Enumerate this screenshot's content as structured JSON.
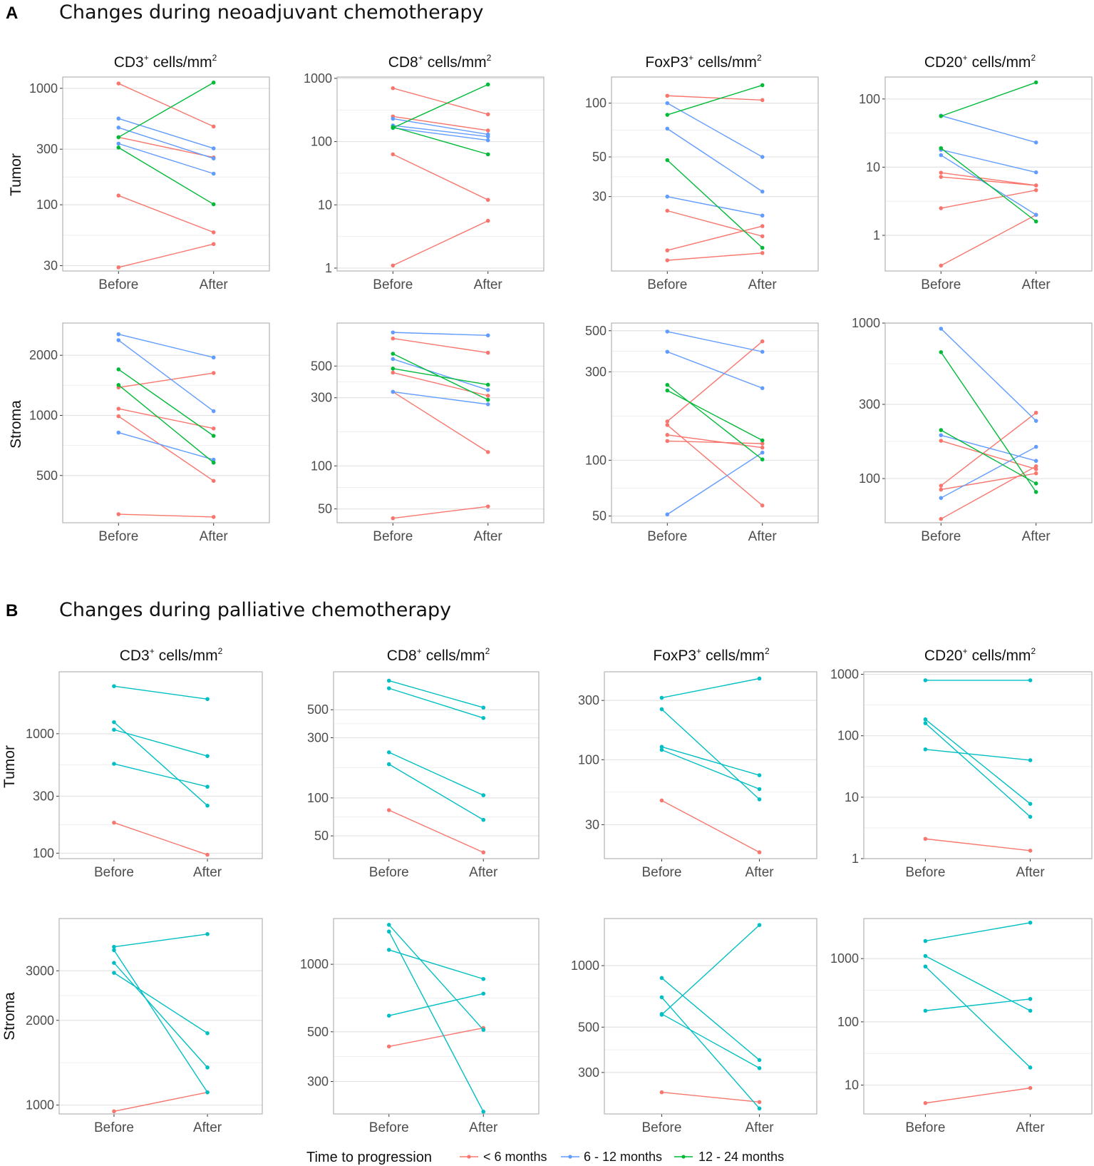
{
  "sections": [
    {
      "letter": "A",
      "title": "Changes during neoadjuvant chemotherapy"
    },
    {
      "letter": "B",
      "title": "Changes during palliative chemotherapy"
    }
  ],
  "columns": [
    {
      "marker": "CD3",
      "unit": "cells/mm",
      "sup": "+",
      "exp": "2"
    },
    {
      "marker": "CD8",
      "unit": "cells/mm",
      "sup": "+",
      "exp": "2"
    },
    {
      "marker": "FoxP3",
      "unit": "cells/mm",
      "sup": "+",
      "exp": "2"
    },
    {
      "marker": "CD20",
      "unit": "cells/mm",
      "sup": "+",
      "exp": "2"
    }
  ],
  "row_labels": [
    "Tumor",
    "Stroma"
  ],
  "x_categories": [
    "Before",
    "After"
  ],
  "legend": {
    "title": "Time to progression",
    "items": [
      {
        "label": "< 6 months",
        "color": "#F8766D"
      },
      {
        "label": "6 - 12 months",
        "color": "#619CFF"
      },
      {
        "label": "12 - 24 months",
        "color": "#00BA38"
      }
    ]
  },
  "colors": {
    "lt6": "#F8766D",
    "m6_12": "#619CFF",
    "m12_24": "#00BA38",
    "palliative": "#00BFC4",
    "grid": "#EBEBEB",
    "border": "#B3B3B3"
  },
  "chart_data": [
    {
      "section": "A",
      "row": "Tumor",
      "col": "CD3",
      "type": "line",
      "scale": "log",
      "ylim": [
        27,
        1250
      ],
      "yticks": [
        30,
        100,
        300,
        1000
      ],
      "series": [
        {
          "group": "lt6",
          "values": [
            1100,
            470
          ]
        },
        {
          "group": "lt6",
          "values": [
            380,
            255
          ]
        },
        {
          "group": "lt6",
          "values": [
            120,
            58
          ]
        },
        {
          "group": "lt6",
          "values": [
            29,
            46
          ]
        },
        {
          "group": "m6_12",
          "values": [
            550,
            305
          ]
        },
        {
          "group": "m6_12",
          "values": [
            460,
            250
          ]
        },
        {
          "group": "m6_12",
          "values": [
            335,
            185
          ]
        },
        {
          "group": "m12_24",
          "values": [
            380,
            1120
          ]
        },
        {
          "group": "m12_24",
          "values": [
            310,
            101
          ]
        }
      ]
    },
    {
      "section": "A",
      "row": "Tumor",
      "col": "CD8",
      "type": "line",
      "scale": "log",
      "ylim": [
        0.9,
        1050
      ],
      "yticks": [
        1,
        10,
        100,
        1000
      ],
      "series": [
        {
          "group": "lt6",
          "values": [
            700,
            270
          ]
        },
        {
          "group": "lt6",
          "values": [
            250,
            150
          ]
        },
        {
          "group": "lt6",
          "values": [
            63,
            12
          ]
        },
        {
          "group": "lt6",
          "values": [
            1.1,
            5.6
          ]
        },
        {
          "group": "m6_12",
          "values": [
            230,
            130
          ]
        },
        {
          "group": "m6_12",
          "values": [
            180,
            120
          ]
        },
        {
          "group": "m6_12",
          "values": [
            165,
            105
          ]
        },
        {
          "group": "m12_24",
          "values": [
            165,
            800
          ]
        },
        {
          "group": "m12_24",
          "values": [
            170,
            63
          ]
        }
      ]
    },
    {
      "section": "A",
      "row": "Tumor",
      "col": "FoxP3",
      "type": "line",
      "scale": "log",
      "ylim": [
        11.5,
        140
      ],
      "yticks": [
        30,
        50,
        100
      ],
      "series": [
        {
          "group": "lt6",
          "values": [
            110,
            104
          ]
        },
        {
          "group": "lt6",
          "values": [
            25,
            18
          ]
        },
        {
          "group": "lt6",
          "values": [
            15,
            20.5
          ]
        },
        {
          "group": "lt6",
          "values": [
            13.2,
            14.5
          ]
        },
        {
          "group": "m6_12",
          "values": [
            100,
            50
          ]
        },
        {
          "group": "m6_12",
          "values": [
            72,
            32
          ]
        },
        {
          "group": "m6_12",
          "values": [
            30,
            23.5
          ]
        },
        {
          "group": "m12_24",
          "values": [
            86,
            126
          ]
        },
        {
          "group": "m12_24",
          "values": [
            48,
            15.5
          ]
        }
      ]
    },
    {
      "section": "A",
      "row": "Tumor",
      "col": "CD20",
      "type": "line",
      "scale": "log",
      "ylim": [
        0.3,
        210
      ],
      "yticks": [
        1,
        10,
        100
      ],
      "series": [
        {
          "group": "lt6",
          "values": [
            8.3,
            5.4
          ]
        },
        {
          "group": "lt6",
          "values": [
            7.2,
            5.4
          ]
        },
        {
          "group": "lt6",
          "values": [
            2.5,
            4.6
          ]
        },
        {
          "group": "lt6",
          "values": [
            0.36,
            2.0
          ]
        },
        {
          "group": "m6_12",
          "values": [
            57,
            23
          ]
        },
        {
          "group": "m6_12",
          "values": [
            18,
            8.4
          ]
        },
        {
          "group": "m6_12",
          "values": [
            15,
            2.0
          ]
        },
        {
          "group": "m12_24",
          "values": [
            56,
            175
          ]
        },
        {
          "group": "m12_24",
          "values": [
            19,
            1.6
          ]
        }
      ]
    },
    {
      "section": "A",
      "row": "Stroma",
      "col": "CD3",
      "type": "line",
      "scale": "log",
      "ylim": [
        290,
        2900
      ],
      "yticks": [
        500,
        1000,
        2000
      ],
      "series": [
        {
          "group": "lt6",
          "values": [
            1380,
            1630
          ]
        },
        {
          "group": "lt6",
          "values": [
            1080,
            860
          ]
        },
        {
          "group": "lt6",
          "values": [
            990,
            470
          ]
        },
        {
          "group": "lt6",
          "values": [
            320,
            310
          ]
        },
        {
          "group": "m6_12",
          "values": [
            2550,
            1950
          ]
        },
        {
          "group": "m6_12",
          "values": [
            2380,
            1050
          ]
        },
        {
          "group": "m6_12",
          "values": [
            820,
            600
          ]
        },
        {
          "group": "m12_24",
          "values": [
            1700,
            790
          ]
        },
        {
          "group": "m12_24",
          "values": [
            1420,
            580
          ]
        }
      ]
    },
    {
      "section": "A",
      "row": "Stroma",
      "col": "CD8",
      "type": "line",
      "scale": "log",
      "ylim": [
        40,
        1000
      ],
      "yticks": [
        50,
        100,
        300,
        500
      ],
      "series": [
        {
          "group": "lt6",
          "values": [
            780,
            620
          ]
        },
        {
          "group": "lt6",
          "values": [
            450,
            310
          ]
        },
        {
          "group": "lt6",
          "values": [
            330,
            125
          ]
        },
        {
          "group": "lt6",
          "values": [
            43,
            52
          ]
        },
        {
          "group": "m6_12",
          "values": [
            860,
            820
          ]
        },
        {
          "group": "m6_12",
          "values": [
            560,
            340
          ]
        },
        {
          "group": "m6_12",
          "values": [
            330,
            270
          ]
        },
        {
          "group": "m12_24",
          "values": [
            610,
            290
          ]
        },
        {
          "group": "m12_24",
          "values": [
            480,
            370
          ]
        }
      ]
    },
    {
      "section": "A",
      "row": "Stroma",
      "col": "FoxP3",
      "type": "line",
      "scale": "log",
      "ylim": [
        46,
        550
      ],
      "yticks": [
        50,
        100,
        300,
        500
      ],
      "series": [
        {
          "group": "lt6",
          "values": [
            162,
            438
          ]
        },
        {
          "group": "lt6",
          "values": [
            155,
            57
          ]
        },
        {
          "group": "lt6",
          "values": [
            137,
            117
          ]
        },
        {
          "group": "lt6",
          "values": [
            127,
            123
          ]
        },
        {
          "group": "m6_12",
          "values": [
            495,
            385
          ]
        },
        {
          "group": "m6_12",
          "values": [
            385,
            245
          ]
        },
        {
          "group": "m6_12",
          "values": [
            51,
            110
          ]
        },
        {
          "group": "m12_24",
          "values": [
            255,
            101
          ]
        },
        {
          "group": "m12_24",
          "values": [
            238,
            128
          ]
        }
      ]
    },
    {
      "section": "A",
      "row": "Stroma",
      "col": "CD20",
      "type": "line",
      "scale": "log",
      "ylim": [
        52,
        1000
      ],
      "yticks": [
        100,
        300,
        1000
      ],
      "series": [
        {
          "group": "lt6",
          "values": [
            175,
            115
          ]
        },
        {
          "group": "lt6",
          "values": [
            90,
            265
          ]
        },
        {
          "group": "lt6",
          "values": [
            85,
            108
          ]
        },
        {
          "group": "lt6",
          "values": [
            55,
            120
          ]
        },
        {
          "group": "m6_12",
          "values": [
            920,
            235
          ]
        },
        {
          "group": "m6_12",
          "values": [
            190,
            130
          ]
        },
        {
          "group": "m6_12",
          "values": [
            75,
            160
          ]
        },
        {
          "group": "m12_24",
          "values": [
            650,
            82
          ]
        },
        {
          "group": "m12_24",
          "values": [
            205,
            93
          ]
        }
      ]
    },
    {
      "section": "B",
      "row": "Tumor",
      "col": "CD3",
      "type": "line",
      "scale": "log",
      "ylim": [
        90,
        3300
      ],
      "yticks": [
        100,
        300,
        1000
      ],
      "series": [
        {
          "group": "lt6",
          "values": [
            180,
            97
          ]
        },
        {
          "group": "palliative",
          "values": [
            2500,
            1950
          ]
        },
        {
          "group": "palliative",
          "values": [
            1250,
            250
          ]
        },
        {
          "group": "palliative",
          "values": [
            1080,
            650
          ]
        },
        {
          "group": "palliative",
          "values": [
            560,
            360
          ]
        }
      ]
    },
    {
      "section": "B",
      "row": "Tumor",
      "col": "CD8",
      "type": "line",
      "scale": "log",
      "ylim": [
        33,
        1000
      ],
      "yticks": [
        50,
        100,
        300,
        500
      ],
      "series": [
        {
          "group": "lt6",
          "values": [
            80,
            37
          ]
        },
        {
          "group": "palliative",
          "values": [
            850,
            520
          ]
        },
        {
          "group": "palliative",
          "values": [
            740,
            430
          ]
        },
        {
          "group": "palliative",
          "values": [
            230,
            105
          ]
        },
        {
          "group": "palliative",
          "values": [
            185,
            67
          ]
        }
      ]
    },
    {
      "section": "B",
      "row": "Tumor",
      "col": "FoxP3",
      "type": "line",
      "scale": "log",
      "ylim": [
        16,
        510
      ],
      "yticks": [
        30,
        100,
        300
      ],
      "series": [
        {
          "group": "lt6",
          "values": [
            47,
            18
          ]
        },
        {
          "group": "palliative",
          "values": [
            315,
            450
          ]
        },
        {
          "group": "palliative",
          "values": [
            255,
            48
          ]
        },
        {
          "group": "palliative",
          "values": [
            127,
            75
          ]
        },
        {
          "group": "palliative",
          "values": [
            120,
            58
          ]
        }
      ]
    },
    {
      "section": "B",
      "row": "Tumor",
      "col": "CD20",
      "type": "line",
      "scale": "log",
      "ylim": [
        1,
        1100
      ],
      "yticks": [
        1,
        10,
        100,
        1000
      ],
      "series": [
        {
          "group": "lt6",
          "values": [
            2.1,
            1.35
          ]
        },
        {
          "group": "palliative",
          "values": [
            800,
            800
          ]
        },
        {
          "group": "palliative",
          "values": [
            185,
            7.8
          ]
        },
        {
          "group": "palliative",
          "values": [
            160,
            4.8
          ]
        },
        {
          "group": "palliative",
          "values": [
            60,
            40
          ]
        }
      ]
    },
    {
      "section": "B",
      "row": "Stroma",
      "col": "CD3",
      "type": "line",
      "scale": "log",
      "ylim": [
        930,
        4600
      ],
      "yticks": [
        1000,
        2000,
        3000
      ],
      "series": [
        {
          "group": "lt6",
          "values": [
            950,
            1110
          ]
        },
        {
          "group": "palliative",
          "values": [
            3650,
            4050
          ]
        },
        {
          "group": "palliative",
          "values": [
            3550,
            1110
          ]
        },
        {
          "group": "palliative",
          "values": [
            3200,
            1360
          ]
        },
        {
          "group": "palliative",
          "values": [
            2950,
            1800
          ]
        }
      ]
    },
    {
      "section": "B",
      "row": "Stroma",
      "col": "CD8",
      "type": "line",
      "scale": "log",
      "ylim": [
        215,
        1600
      ],
      "yticks": [
        300,
        500,
        1000
      ],
      "series": [
        {
          "group": "lt6",
          "values": [
            430,
            520
          ]
        },
        {
          "group": "palliative",
          "values": [
            1500,
            510
          ]
        },
        {
          "group": "palliative",
          "values": [
            1400,
            220
          ]
        },
        {
          "group": "palliative",
          "values": [
            1160,
            860
          ]
        },
        {
          "group": "palliative",
          "values": [
            590,
            740
          ]
        }
      ]
    },
    {
      "section": "B",
      "row": "Stroma",
      "col": "FoxP3",
      "type": "line",
      "scale": "log",
      "ylim": [
        188,
        1700
      ],
      "yticks": [
        300,
        500,
        1000
      ],
      "series": [
        {
          "group": "lt6",
          "values": [
            240,
            215
          ]
        },
        {
          "group": "palliative",
          "values": [
            575,
            1580
          ]
        },
        {
          "group": "palliative",
          "values": [
            870,
            345
          ]
        },
        {
          "group": "palliative",
          "values": [
            700,
            200
          ]
        },
        {
          "group": "palliative",
          "values": [
            580,
            315
          ]
        }
      ]
    },
    {
      "section": "B",
      "row": "Stroma",
      "col": "CD20",
      "type": "line",
      "scale": "log",
      "ylim": [
        3.5,
        4300
      ],
      "yticks": [
        10,
        100,
        1000
      ],
      "series": [
        {
          "group": "lt6",
          "values": [
            5.2,
            9
          ]
        },
        {
          "group": "palliative",
          "values": [
            1900,
            3700
          ]
        },
        {
          "group": "palliative",
          "values": [
            1100,
            150
          ]
        },
        {
          "group": "palliative",
          "values": [
            750,
            19
          ]
        },
        {
          "group": "palliative",
          "values": [
            150,
            230
          ]
        }
      ]
    }
  ]
}
